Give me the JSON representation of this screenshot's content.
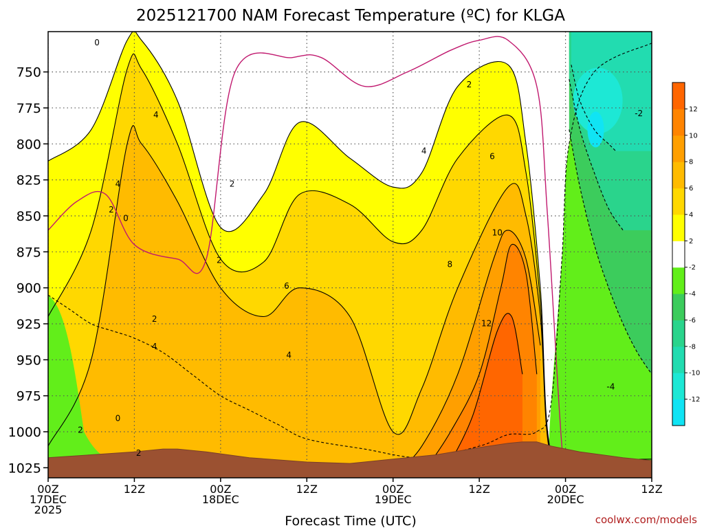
{
  "chart_data": {
    "type": "heatmap",
    "title": "2025121700 NAM Forecast Temperature (ºC) for KLGA",
    "xlabel": "Forecast Time (UTC)",
    "ylabel": "Pressure (hPa)",
    "credit": "coolwx.com/models",
    "x_ticks": [
      {
        "hour": 0,
        "lines": [
          "00Z",
          "17DEC",
          "2025"
        ]
      },
      {
        "hour": 12,
        "lines": [
          "12Z"
        ]
      },
      {
        "hour": 24,
        "lines": [
          "00Z",
          "18DEC"
        ]
      },
      {
        "hour": 36,
        "lines": [
          "12Z"
        ]
      },
      {
        "hour": 48,
        "lines": [
          "00Z",
          "19DEC"
        ]
      },
      {
        "hour": 60,
        "lines": [
          "12Z"
        ]
      },
      {
        "hour": 72,
        "lines": [
          "00Z",
          "20DEC"
        ]
      },
      {
        "hour": 84,
        "lines": [
          "12Z"
        ]
      }
    ],
    "xlim": [
      0,
      84
    ],
    "y_ticks": [
      750,
      775,
      800,
      825,
      850,
      875,
      900,
      925,
      950,
      975,
      1000,
      1025
    ],
    "ylim": [
      1032,
      722
    ],
    "grid": true,
    "colorbar": {
      "levels": [
        -14,
        -12,
        -10,
        -8,
        -6,
        -4,
        -2,
        2,
        4,
        6,
        8,
        10,
        12,
        14
      ],
      "colors": [
        "#10e4f4",
        "#1de8d5",
        "#22dcb0",
        "#2ad48c",
        "#3ccc5c",
        "#62ee1a",
        "#ffffff",
        "#ffff00",
        "#ffd800",
        "#ffbb00",
        "#ff9f00",
        "#ff8400",
        "#ff6600"
      ],
      "labels": [
        "-12",
        "-10",
        "-8",
        "-6",
        "-4",
        "-2",
        "2",
        "4",
        "6",
        "8",
        "10",
        "12"
      ]
    },
    "series": [
      {
        "name": "2",
        "hours": [
          0,
          6,
          11,
          13,
          18,
          24,
          30,
          35,
          42,
          48,
          52,
          57,
          64,
          66.5,
          68.5,
          70,
          75,
          84
        ],
        "pressures": [
          812,
          790,
          728,
          728,
          770,
          858,
          835,
          785,
          810,
          830,
          820,
          760,
          745,
          800,
          900,
          1015,
          1019,
          1019
        ]
      },
      {
        "name": "4",
        "hours": [
          0,
          6,
          11,
          13,
          18,
          24,
          30,
          35,
          42,
          48,
          52,
          57,
          64,
          66.5,
          68.5,
          70,
          75,
          84
        ],
        "pressures": [
          920,
          860,
          748,
          748,
          800,
          880,
          882,
          835,
          842,
          868,
          860,
          810,
          780,
          820,
          910,
          1017,
          1021,
          1021
        ]
      },
      {
        "name": "6",
        "hours": [
          0,
          6,
          11,
          13,
          18,
          24,
          30,
          35,
          42,
          48,
          52,
          57,
          64,
          66.5,
          68.5,
          70,
          75,
          84
        ],
        "pressures": [
          1010,
          950,
          800,
          800,
          840,
          900,
          920,
          900,
          920,
          1000,
          970,
          900,
          830,
          850,
          920,
          1018,
          1023,
          1023
        ]
      },
      {
        "name": "8",
        "hours": [
          48,
          52,
          57,
          62,
          64,
          66.5,
          68.5
        ],
        "pressures": [
          1030,
          1010,
          960,
          880,
          860,
          880,
          940
        ]
      },
      {
        "name": "10",
        "hours": [
          52,
          56,
          60,
          63,
          64.5,
          66.5,
          68
        ],
        "pressures": [
          1030,
          1000,
          960,
          900,
          870,
          890,
          960
        ]
      },
      {
        "name": "12",
        "hours": [
          55,
          59,
          62.5,
          64.5,
          66
        ],
        "pressures": [
          1030,
          990,
          930,
          920,
          960
        ]
      },
      {
        "name": "0",
        "hours": [
          0,
          4,
          8,
          12,
          18,
          22,
          26,
          34,
          38,
          44,
          50,
          56,
          60,
          64,
          68,
          69.5,
          71.5,
          72.5,
          84
        ],
        "pressures": [
          860,
          840,
          835,
          870,
          880,
          880,
          750,
          740,
          740,
          760,
          750,
          735,
          728,
          728,
          760,
          850,
          1010,
          1025,
          1028
        ]
      },
      {
        "name": "-2",
        "hours": [
          0,
          3,
          6,
          9,
          12,
          16,
          20,
          24,
          28,
          32,
          36,
          44,
          52,
          60,
          64,
          68,
          70,
          71.5,
          72.5,
          76,
          84
        ],
        "pressures": [
          905,
          915,
          925,
          930,
          935,
          945,
          960,
          975,
          985,
          995,
          1005,
          1012,
          1018,
          1010,
          1002,
          1000,
          980,
          880,
          800,
          750,
          730
        ]
      },
      {
        "name": "-4",
        "hours": [
          72.5,
          74,
          76,
          78,
          80,
          82,
          84
        ],
        "pressures": [
          790,
          830,
          870,
          900,
          925,
          945,
          960
        ]
      },
      {
        "name": "-6",
        "hours": [
          72.5,
          74,
          76,
          78,
          80
        ],
        "pressures": [
          755,
          790,
          820,
          845,
          860
        ]
      },
      {
        "name": "-8",
        "hours": [
          72.8,
          74,
          76,
          78,
          79
        ],
        "pressures": [
          745,
          770,
          790,
          800,
          805
        ]
      }
    ],
    "contour_labels": [
      "0",
      "4",
      "4",
      "2",
      "2",
      "0",
      "2",
      "2",
      "2",
      "4",
      "4",
      "6",
      "4",
      "6",
      "8",
      "10",
      "12",
      "2",
      "-2",
      "-4",
      "2",
      "0"
    ]
  }
}
